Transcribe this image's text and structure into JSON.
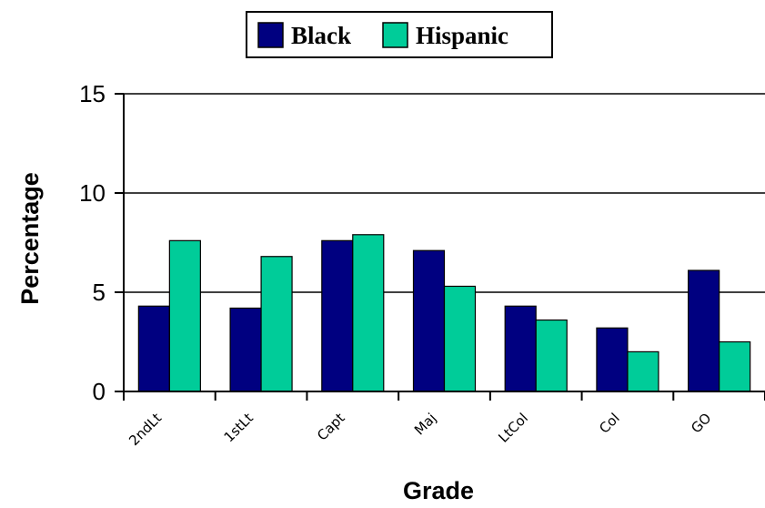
{
  "chart_data": {
    "type": "bar",
    "categories": [
      "2ndLt",
      "1stLt",
      "Capt",
      "Maj",
      "LtCol",
      "Col",
      "GO"
    ],
    "series": [
      {
        "name": "Black",
        "color": "#000080",
        "values": [
          4.3,
          4.2,
          7.6,
          7.1,
          4.3,
          3.2,
          6.1
        ]
      },
      {
        "name": "Hispanic",
        "color": "#00CC99",
        "values": [
          7.6,
          6.8,
          7.9,
          5.3,
          3.6,
          2.0,
          2.5
        ]
      }
    ],
    "xlabel": "Grade",
    "ylabel": "Percentage",
    "ylim": [
      0,
      15
    ],
    "yticks": [
      "0",
      "5",
      "10",
      "15"
    ],
    "grid": true,
    "legend_position": "top-center"
  }
}
